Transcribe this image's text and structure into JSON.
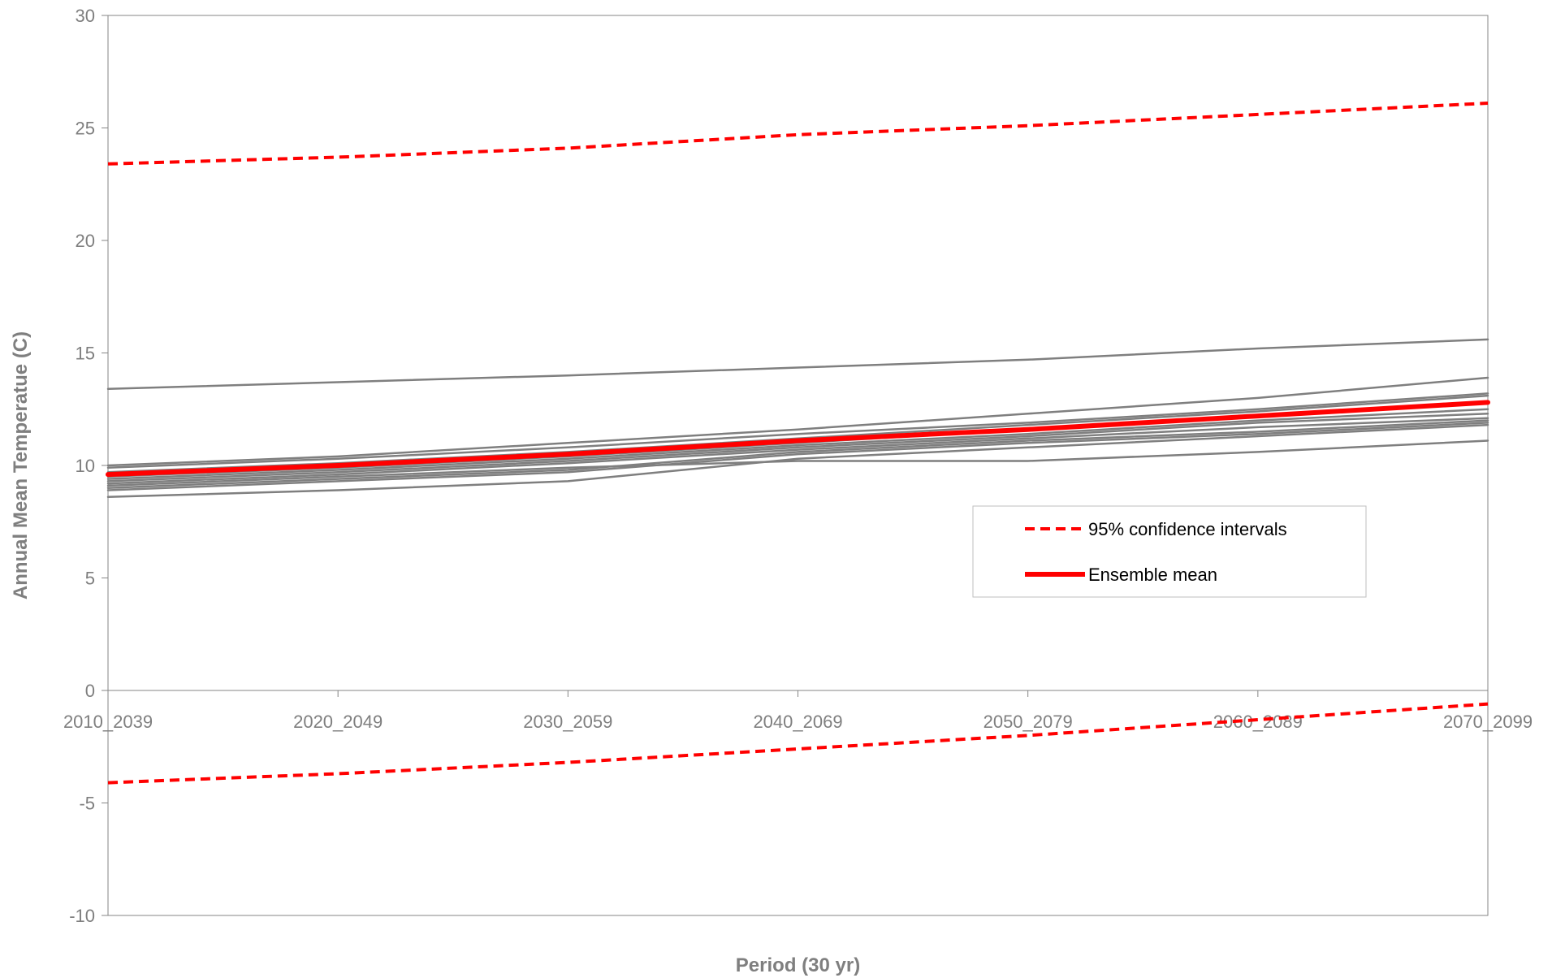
{
  "chart_data": {
    "type": "line",
    "title": "",
    "xlabel": "Period (30 yr)",
    "ylabel": "Annual Mean Temperatue (C)",
    "ylim": [
      -10,
      30
    ],
    "y_ticks": [
      -10,
      -5,
      0,
      5,
      10,
      15,
      20,
      25,
      30
    ],
    "grid": false,
    "legend_position": "right-middle",
    "categories": [
      "2010_2039",
      "2020_2049",
      "2030_2059",
      "2040_2069",
      "2050_2079",
      "2060_2089",
      "2070_2099"
    ],
    "legend": [
      {
        "label": "95% confidence intervals",
        "style": "dashed",
        "color": "#ff0000"
      },
      {
        "label": "Ensemble mean",
        "style": "solid",
        "color": "#ff0000"
      }
    ],
    "series": [
      {
        "role": "model",
        "color": "#7f7f7f",
        "values": [
          13.4,
          13.7,
          14.0,
          14.35,
          14.7,
          15.2,
          15.6
        ]
      },
      {
        "role": "model",
        "color": "#7f7f7f",
        "values": [
          10.0,
          10.4,
          11.0,
          11.6,
          12.3,
          13.0,
          13.9
        ]
      },
      {
        "role": "model",
        "color": "#7f7f7f",
        "values": [
          9.9,
          10.3,
          10.8,
          11.4,
          11.9,
          12.5,
          13.2
        ]
      },
      {
        "role": "model",
        "color": "#7f7f7f",
        "values": [
          9.7,
          10.1,
          10.6,
          11.2,
          11.8,
          12.4,
          13.1
        ]
      },
      {
        "role": "model",
        "color": "#7f7f7f",
        "values": [
          9.5,
          9.9,
          10.4,
          11.0,
          11.6,
          12.2,
          12.8
        ]
      },
      {
        "role": "model",
        "color": "#7f7f7f",
        "values": [
          9.4,
          9.8,
          10.3,
          10.9,
          11.4,
          12.0,
          12.5
        ]
      },
      {
        "role": "model",
        "color": "#7f7f7f",
        "values": [
          9.3,
          9.7,
          10.2,
          10.8,
          11.3,
          11.9,
          12.3
        ]
      },
      {
        "role": "model",
        "color": "#7f7f7f",
        "values": [
          9.2,
          9.6,
          10.1,
          10.7,
          11.2,
          11.7,
          12.1
        ]
      },
      {
        "role": "model",
        "color": "#7f7f7f",
        "values": [
          9.0,
          9.4,
          9.8,
          10.6,
          11.1,
          11.5,
          12.0
        ]
      },
      {
        "role": "model",
        "color": "#7f7f7f",
        "values": [
          8.9,
          9.3,
          9.7,
          10.5,
          11.0,
          11.4,
          11.9
        ]
      },
      {
        "role": "model",
        "color": "#7f7f7f",
        "values": [
          9.1,
          9.5,
          9.9,
          10.2,
          10.2,
          10.6,
          11.1
        ]
      },
      {
        "role": "model",
        "color": "#7f7f7f",
        "values": [
          8.6,
          8.9,
          9.3,
          10.3,
          10.8,
          11.3,
          11.8
        ]
      },
      {
        "name": "Ensemble mean",
        "role": "mean",
        "color": "#ff0000",
        "values": [
          9.6,
          10.0,
          10.5,
          11.1,
          11.6,
          12.2,
          12.8
        ]
      },
      {
        "name": "95% confidence intervals",
        "role": "ci-upper",
        "color": "#ff0000",
        "values": [
          23.4,
          23.7,
          24.1,
          24.7,
          25.1,
          25.6,
          26.1
        ]
      },
      {
        "name": "95% confidence intervals",
        "role": "ci-lower",
        "color": "#ff0000",
        "values": [
          -4.1,
          -3.7,
          -3.2,
          -2.6,
          -2.0,
          -1.3,
          -0.6
        ]
      }
    ]
  }
}
